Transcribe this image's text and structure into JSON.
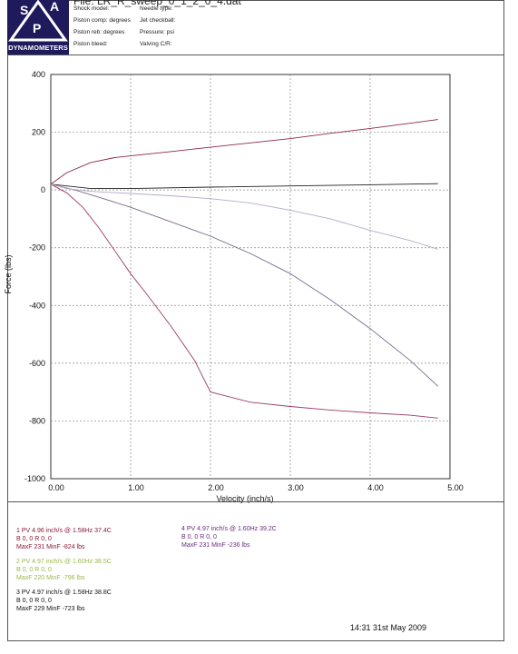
{
  "header": {
    "file_title": "File: LR_R_sweep_0_1_2_0_4.dat",
    "logo_text": "DYNAMOMETERS",
    "logo_letters": [
      "S",
      "P",
      "A"
    ],
    "fields_left": [
      "Shock model:",
      "Piston comp: degrees",
      "Piston reb: degrees",
      "Piston bleed:"
    ],
    "fields_right": [
      "Needle type:",
      "Jet checkball:",
      "Pressure: psi",
      "Valving C/R:"
    ]
  },
  "chart_data": {
    "type": "line",
    "xlabel": "Velocity (inch/s)",
    "ylabel": "Force (lbs)",
    "xlim": [
      0,
      5
    ],
    "ylim": [
      -1000,
      400
    ],
    "x_ticks": [
      "0.00",
      "1.00",
      "2.00",
      "3.00",
      "4.00",
      "5.00"
    ],
    "y_ticks": [
      "400",
      "200",
      "0",
      "-200",
      "-400",
      "-600",
      "-800",
      "-1000"
    ],
    "grid": true,
    "series": [
      {
        "name": "1",
        "color": "#8b2a4a",
        "x": [
          0,
          0.2,
          0.5,
          0.8,
          1.0,
          1.5,
          2.0,
          2.5,
          3.0,
          3.5,
          4.0,
          4.5,
          4.85
        ],
        "y": [
          20,
          60,
          95,
          112,
          118,
          133,
          148,
          163,
          178,
          196,
          213,
          231,
          244
        ]
      },
      {
        "name": "1",
        "color": "#9a3a6a",
        "x": [
          0,
          0.2,
          0.4,
          0.6,
          0.8,
          1.0,
          1.2,
          1.5,
          1.8,
          2.0,
          2.5,
          3.0,
          3.5,
          4.0,
          4.5,
          4.85
        ],
        "y": [
          20,
          -10,
          -60,
          -130,
          -210,
          -290,
          -360,
          -470,
          -590,
          -700,
          -735,
          -750,
          -762,
          -772,
          -780,
          -790
        ]
      },
      {
        "name": "3",
        "color": "#222222",
        "x": [
          0,
          0.5,
          1.0,
          2.0,
          3.0,
          4.0,
          4.85
        ],
        "y": [
          20,
          5,
          5,
          10,
          14,
          18,
          22
        ]
      },
      {
        "name": "3",
        "color": "#7a6a8a",
        "x": [
          0,
          0.3,
          0.6,
          1.0,
          1.5,
          2.0,
          2.5,
          3.0,
          3.5,
          4.0,
          4.5,
          4.85
        ],
        "y": [
          20,
          0,
          -25,
          -60,
          -110,
          -160,
          -220,
          -290,
          -380,
          -480,
          -590,
          -680
        ]
      },
      {
        "name": "4",
        "color": "#b8a8c8",
        "x": [
          0,
          0.2,
          0.5,
          1.0,
          1.5,
          2.0,
          2.5,
          3.0,
          3.5,
          4.0,
          4.5,
          4.85
        ],
        "y": [
          20,
          5,
          -5,
          -12,
          -20,
          -30,
          -45,
          -70,
          -100,
          -140,
          -175,
          -205
        ]
      }
    ]
  },
  "legend": [
    {
      "line1": "1 PV 4.96 inch/s @ 1.58Hz 37.4C",
      "line2": "B  0,  0   R  0,  0",
      "line3": "MaxF  231   MinF  -824 lbs"
    },
    {
      "line1": "2 PV 4.97 inch/s @ 1.60Hz 38.5C",
      "line2": "B  0,  0   R  0,  0",
      "line3": "MaxF  220   MinF  -796 lbs"
    },
    {
      "line1": "3 PV 4.97 inch/s @ 1.58Hz 38.8C",
      "line2": "B  0,  0   R  0,  0",
      "line3": "MaxF  229   MinF  -723 lbs"
    },
    {
      "line1": "4 PV 4.97 inch/s @ 1.60Hz 39.2C",
      "line2": "B  0,  0   R  0,  0",
      "line3": "MaxF  231   MinF  -236 lbs"
    }
  ],
  "footer": {
    "datetime": "14:31  31st May 2009"
  }
}
